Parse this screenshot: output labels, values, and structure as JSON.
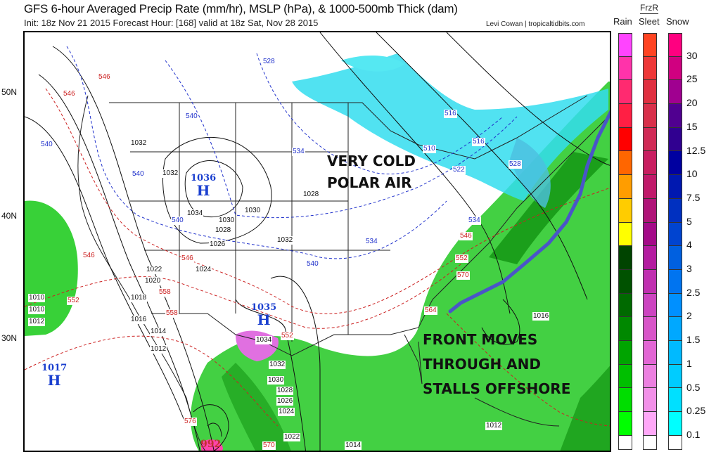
{
  "header": {
    "title": "GFS 6-hour Averaged Precip Rate (mm/hr), MSLP (hPa), & 1000-500mb Thick (dam)",
    "subtitle": "Init: 18z Nov 21 2015   Forecast Hour: [168]   valid at 18z Sat, Nov 28 2015",
    "credit": "Levi Cowan | tropicaltidbits.com"
  },
  "legend": {
    "frzr_label": "FrzR",
    "rain_label": "Rain",
    "sleet_label": "Sleet",
    "snow_label": "Snow",
    "ticks": [
      "30",
      "25",
      "20",
      "15",
      "12.5",
      "10",
      "7.5",
      "5",
      "4",
      "3",
      "2.5",
      "2",
      "1.5",
      "1",
      "0.5",
      "0.25",
      "0.1"
    ],
    "rain_colors": [
      "#ff44ff",
      "#ff33aa",
      "#ff2a70",
      "#ff1f44",
      "#ff0000",
      "#ff6600",
      "#ff9d00",
      "#ffcc00",
      "#ffff00",
      "#004400",
      "#005200",
      "#006a00",
      "#008800",
      "#00a400",
      "#00bf00",
      "#00dd00",
      "#00ff00"
    ],
    "sleet_colors": [
      "#ff4422",
      "#ee3838",
      "#e03040",
      "#d8304a",
      "#d02a55",
      "#c81e60",
      "#c01a6a",
      "#b01478",
      "#a40a88",
      "#b41ca0",
      "#c030b0",
      "#cc44c0",
      "#d855c8",
      "#e266d4",
      "#ec80e0",
      "#f290e8",
      "#ffa8f8"
    ],
    "snow_colors": [
      "#ff0080",
      "#d00080",
      "#a00090",
      "#500090",
      "#300090",
      "#0000a0",
      "#0018b0",
      "#0030c0",
      "#0044d0",
      "#0060e0",
      "#0074f0",
      "#0090ff",
      "#00a8ff",
      "#00baff",
      "#00ccff",
      "#00e0ff",
      "#00ffff"
    ]
  },
  "map": {
    "latitudes": [
      "50N",
      "40N",
      "30N"
    ],
    "annotations": [
      "VERY COLD",
      "POLAR AIR",
      "FRONT MOVES",
      "THROUGH AND",
      "STALLS OFFSHORE"
    ],
    "front_color": "#4a55c8",
    "highs": [
      {
        "letter": "H",
        "value": "1036"
      },
      {
        "letter": "H",
        "value": "1035"
      },
      {
        "letter": "H",
        "value": "1017"
      }
    ],
    "low_value": "992",
    "isobar_labels": [
      "1032",
      "1032",
      "1028",
      "1034",
      "1030",
      "1028",
      "1026",
      "1024",
      "1030",
      "1032",
      "1022",
      "1020",
      "1018",
      "1016",
      "1014",
      "1012",
      "1010",
      "1010",
      "1012",
      "1034",
      "1032",
      "1030",
      "1028",
      "1026",
      "1024",
      "1022",
      "1014",
      "1016",
      "1012"
    ],
    "thickness_labels_blue": [
      "528",
      "540",
      "540",
      "540",
      "534",
      "540",
      "534",
      "540",
      "516",
      "510",
      "522",
      "528",
      "516",
      "534"
    ],
    "thickness_labels_red": [
      "546",
      "546",
      "546",
      "552",
      "558",
      "546",
      "552",
      "558",
      "564",
      "546",
      "552",
      "570",
      "570",
      "576"
    ]
  }
}
